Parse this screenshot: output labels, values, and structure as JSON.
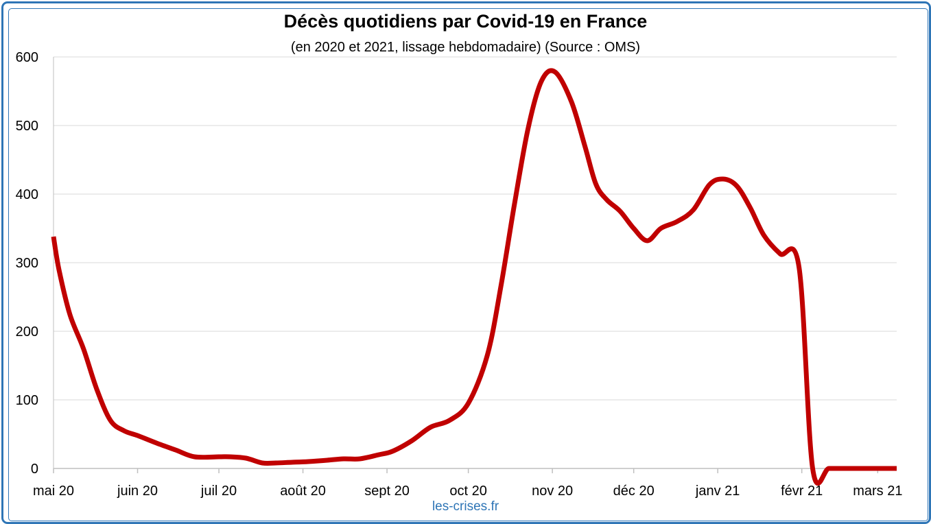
{
  "chart_data": {
    "type": "line",
    "title": "Décès quotidiens par Covid-19 en France",
    "subtitle": "(en 2020 et 2021, lissage hebdomadaire) (Source : OMS)",
    "footer": "les-crises.fr",
    "xlabel": "",
    "ylabel": "",
    "ylim": [
      0,
      600
    ],
    "yticks": [
      0,
      100,
      200,
      300,
      400,
      500,
      600
    ],
    "grid": true,
    "x_range": [
      "2020-05-01",
      "2021-03-08"
    ],
    "x_ticks": [
      {
        "date": "2020-05-01",
        "label": "mai 20"
      },
      {
        "date": "2020-06-01",
        "label": "juin 20"
      },
      {
        "date": "2020-07-01",
        "label": "juil 20"
      },
      {
        "date": "2020-08-01",
        "label": "août 20"
      },
      {
        "date": "2020-09-01",
        "label": "sept 20"
      },
      {
        "date": "2020-10-01",
        "label": "oct 20"
      },
      {
        "date": "2020-11-01",
        "label": "nov 20"
      },
      {
        "date": "2020-12-01",
        "label": "déc 20"
      },
      {
        "date": "2021-01-01",
        "label": "janv 21"
      },
      {
        "date": "2021-02-01",
        "label": "févr 21"
      },
      {
        "date": "2021-03-01",
        "label": "mars 21"
      }
    ],
    "series": [
      {
        "name": "",
        "color": "#c00000",
        "x": [
          "2020-05-01",
          "2020-05-03",
          "2020-05-07",
          "2020-05-12",
          "2020-05-17",
          "2020-05-22",
          "2020-05-27",
          "2020-06-01",
          "2020-06-08",
          "2020-06-15",
          "2020-06-22",
          "2020-07-01",
          "2020-07-05",
          "2020-07-11",
          "2020-07-17",
          "2020-07-22",
          "2020-07-28",
          "2020-08-03",
          "2020-08-10",
          "2020-08-16",
          "2020-08-22",
          "2020-08-29",
          "2020-09-03",
          "2020-09-10",
          "2020-09-17",
          "2020-09-24",
          "2020-10-01",
          "2020-10-08",
          "2020-10-13",
          "2020-10-18",
          "2020-10-23",
          "2020-10-28",
          "2020-11-02",
          "2020-11-08",
          "2020-11-13",
          "2020-11-17",
          "2020-11-21",
          "2020-11-26",
          "2020-12-01",
          "2020-12-06",
          "2020-12-11",
          "2020-12-17",
          "2020-12-23",
          "2020-12-29",
          "2021-01-03",
          "2021-01-08",
          "2021-01-13",
          "2021-01-18",
          "2021-01-24",
          "2021-01-31",
          "2021-02-05",
          "2021-02-11",
          "2021-02-17",
          "2021-02-23",
          "2021-03-01",
          "2021-03-08"
        ],
        "values": [
          338,
          290,
          225,
          175,
          115,
          70,
          55,
          48,
          37,
          27,
          17,
          17,
          17,
          15,
          8,
          8,
          9,
          10,
          12,
          14,
          14,
          20,
          25,
          40,
          60,
          70,
          95,
          165,
          265,
          385,
          495,
          565,
          578,
          535,
          470,
          415,
          392,
          375,
          350,
          332,
          350,
          360,
          377,
          414,
          422,
          412,
          380,
          340,
          313,
          293,
          0,
          0,
          0,
          0,
          0,
          0
        ]
      }
    ]
  }
}
